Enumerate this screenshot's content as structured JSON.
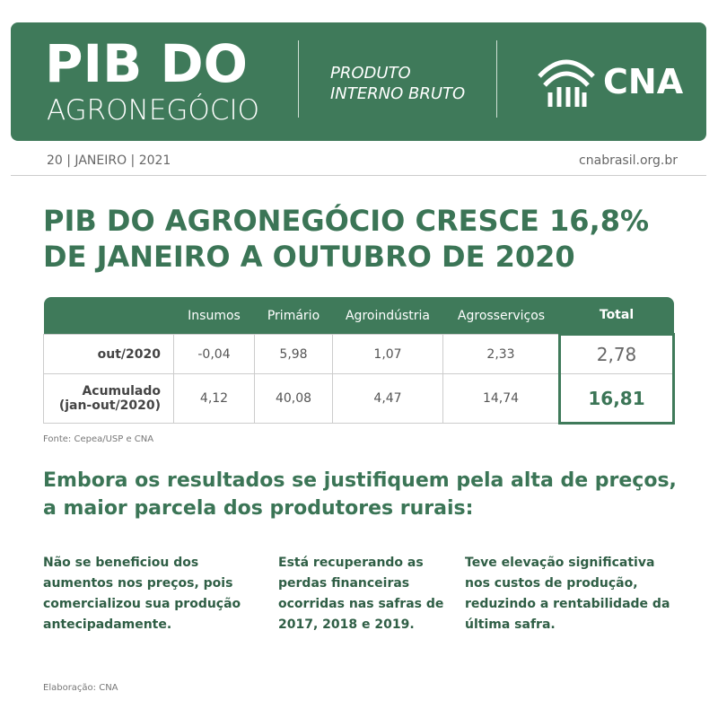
{
  "header": {
    "title": "PIB DO",
    "subtitle": "AGRONEGÓCIO",
    "tagline": [
      "PRODUTO",
      "INTERNO BRUTO"
    ],
    "logo": "CNA"
  },
  "dateline": "20 | JANEIRO | 2021",
  "site": "cnabrasil.org.br",
  "headline": [
    "PIB DO AGRONEGÓCIO CRESCE 16,8%",
    "DE JANEIRO A OUTUBRO DE 2020"
  ],
  "table": {
    "columns": [
      "Insumos",
      "Primário",
      "Agroindústria",
      "Agrosserviços",
      "Total"
    ],
    "rows": [
      {
        "label": [
          "out/2020"
        ],
        "cells": [
          "-0,04",
          "5,98",
          "1,07",
          "2,33",
          "2,78"
        ]
      },
      {
        "label": [
          "Acumulado",
          "(jan-out/2020)"
        ],
        "cells": [
          "4,12",
          "40,08",
          "4,47",
          "14,74",
          "16,81"
        ]
      }
    ]
  },
  "source": "Fonte: Cepea/USP e CNA",
  "subheadline": [
    "Embora os resultados se justifiquem pela alta de preços,",
    "a maior parcela dos produtores rurais:"
  ],
  "points": [
    [
      "Não se beneficiou dos",
      "aumentos nos preços, pois",
      "comercializou sua produção",
      "antecipadamente."
    ],
    [
      "Está recuperando as",
      "perdas financeiras",
      "ocorridas nas safras de",
      "2017, 2018 e 2019."
    ],
    [
      "Teve elevação significativa",
      "nos custos de produção,",
      "reduzindo a rentabilidade da",
      "última safra."
    ]
  ],
  "footer": "Elaboração: CNA"
}
